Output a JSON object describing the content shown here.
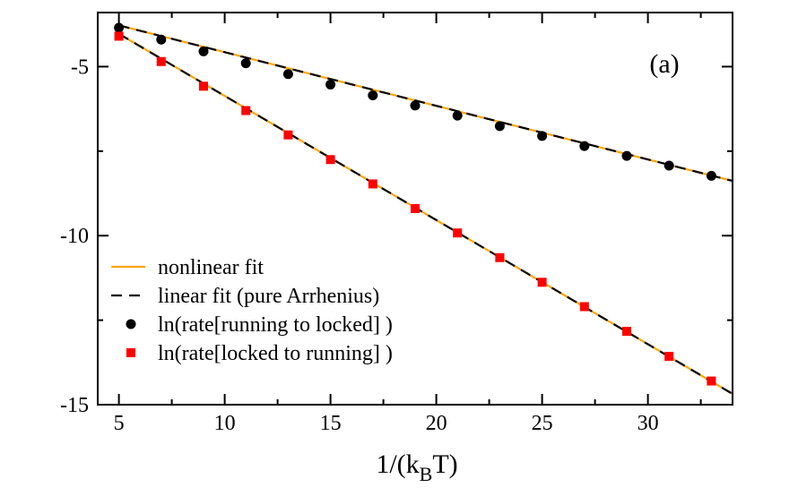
{
  "chart_data": {
    "type": "scatter",
    "panel_label": "(a)",
    "xlabel": {
      "main": "1/(k",
      "sub": "B",
      "end": "T)"
    },
    "ylabel": "",
    "xlim": [
      4,
      34
    ],
    "ylim": [
      -15,
      -3.4
    ],
    "xticks": [
      5,
      10,
      15,
      20,
      25,
      30
    ],
    "yticks": [
      -5,
      -10,
      -15
    ],
    "x_tick_labels": [
      "5",
      "10",
      "15",
      "20",
      "25",
      "30"
    ],
    "y_tick_labels": [
      "-5",
      "-10",
      "-15"
    ],
    "x_minor_step": 2.5,
    "y_minor_step": 2.5,
    "grid": false,
    "legend_position": "bottom-left",
    "series": [
      {
        "name": "ln(rate[running to locked] )",
        "kind": "points",
        "marker": "circle",
        "color": "#000000",
        "x": [
          5,
          7,
          9,
          11,
          13,
          15,
          17,
          19,
          21,
          23,
          25,
          27,
          29,
          31,
          33
        ],
        "y": [
          -3.85,
          -4.2,
          -4.55,
          -4.9,
          -5.22,
          -5.53,
          -5.85,
          -6.15,
          -6.45,
          -6.76,
          -7.05,
          -7.35,
          -7.64,
          -7.93,
          -8.23
        ]
      },
      {
        "name": "ln(rate[locked to running] )",
        "kind": "points",
        "marker": "square",
        "color": "#ff0000",
        "x": [
          5,
          7,
          9,
          11,
          13,
          15,
          17,
          19,
          21,
          23,
          25,
          27,
          29,
          31,
          33
        ],
        "y": [
          -4.1,
          -4.85,
          -5.58,
          -6.3,
          -7.02,
          -7.75,
          -8.47,
          -9.2,
          -9.92,
          -10.65,
          -11.38,
          -12.1,
          -12.83,
          -13.57,
          -14.3
        ]
      },
      {
        "name": "nonlinear fit",
        "kind": "line",
        "style": "solid",
        "color": "#ffa500",
        "lines": [
          {
            "x": [
              5,
              34
            ],
            "y": [
              -3.78,
              -8.38
            ]
          },
          {
            "x": [
              5,
              34
            ],
            "y": [
              -4.03,
              -14.68
            ]
          }
        ]
      },
      {
        "name": "linear fit (pure Arrhenius)",
        "kind": "line",
        "style": "dashed",
        "color": "#000000",
        "lines": [
          {
            "x": [
              5,
              34
            ],
            "y": [
              -3.78,
              -8.38
            ]
          },
          {
            "x": [
              5,
              34
            ],
            "y": [
              -4.03,
              -14.68
            ]
          }
        ]
      }
    ],
    "legend_order": [
      2,
      3,
      0,
      1
    ]
  }
}
